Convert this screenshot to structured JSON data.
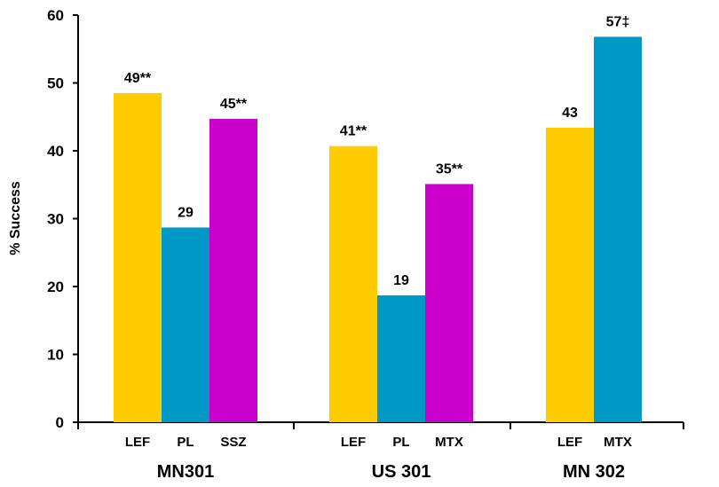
{
  "chart_data": {
    "type": "bar",
    "title": "",
    "xlabel": "",
    "ylabel": "% Success",
    "ylim": [
      0,
      60
    ],
    "yticks": [
      0,
      10,
      20,
      30,
      40,
      50,
      60
    ],
    "grid": false,
    "legend": "none",
    "colors": {
      "LEF": "#FFCC00",
      "PL": "#0099C6",
      "SSZ": "#CC00CC",
      "MTX_US301": "#CC00CC",
      "MTX_MN302": "#0099C6"
    },
    "groups": [
      {
        "name": "MN301",
        "bars": [
          {
            "label": "LEF",
            "value": 48.5,
            "data_label": "49**",
            "color": "#FFCC00"
          },
          {
            "label": "PL",
            "value": 28.7,
            "data_label": "29",
            "color": "#0099C6"
          },
          {
            "label": "SSZ",
            "value": 44.7,
            "data_label": "45**",
            "color": "#CC00CC"
          }
        ]
      },
      {
        "name": "US 301",
        "bars": [
          {
            "label": "LEF",
            "value": 40.7,
            "data_label": "41**",
            "color": "#FFCC00"
          },
          {
            "label": "PL",
            "value": 18.7,
            "data_label": "19",
            "color": "#0099C6"
          },
          {
            "label": "MTX",
            "value": 35.1,
            "data_label": "35**",
            "color": "#CC00CC"
          }
        ]
      },
      {
        "name": "MN 302",
        "bars": [
          {
            "label": "LEF",
            "value": 43.4,
            "data_label": "43",
            "color": "#FFCC00"
          },
          {
            "label": "MTX",
            "value": 56.8,
            "data_label": "57‡",
            "color": "#0099C6"
          }
        ]
      }
    ]
  }
}
